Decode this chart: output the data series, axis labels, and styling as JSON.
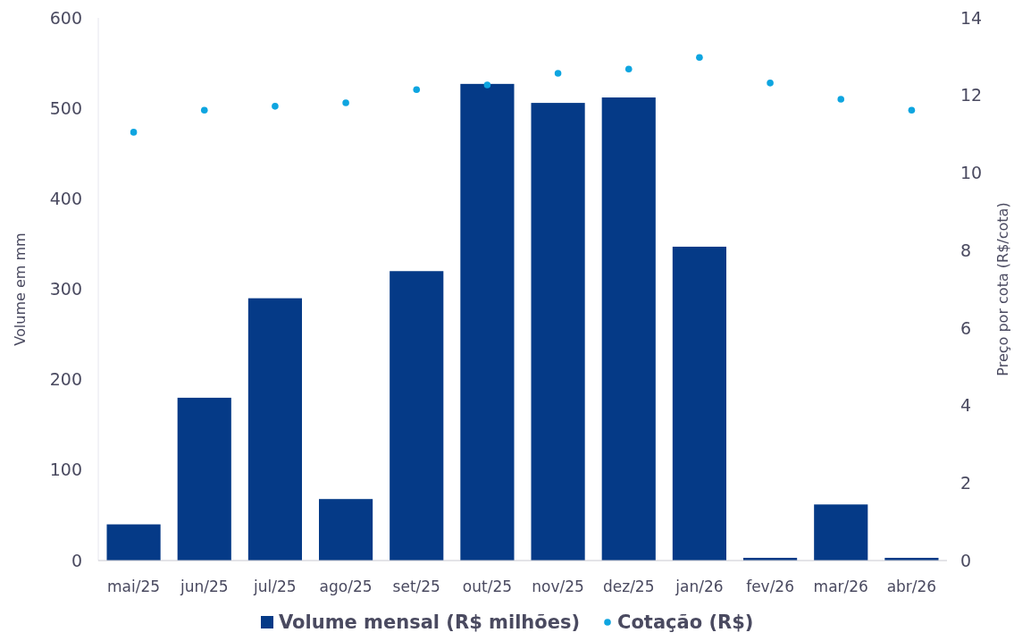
{
  "chart_data": {
    "type": "bar",
    "ylabel": "Volume em mm",
    "y2label": "Preço por cota (R$/cota)",
    "categories": [
      "mai/25",
      "jun/25",
      "jul/25",
      "ago/25",
      "set/25",
      "out/25",
      "nov/25",
      "dez/25",
      "jan/26",
      "fev/26",
      "mar/26",
      "abr/26"
    ],
    "series": [
      {
        "name": "Volume mensal (R$ milhões)",
        "color": "#053a87",
        "values": [
          40,
          180,
          290,
          68,
          320,
          527,
          506,
          512,
          347,
          3,
          62,
          3
        ]
      },
      {
        "name": "Cotação (R$)",
        "type": "scatter",
        "axis": "y2",
        "color": "#0ea5e0",
        "values": [
          11.05,
          11.62,
          11.72,
          11.81,
          12.15,
          12.27,
          12.57,
          12.68,
          12.98,
          12.32,
          11.9,
          11.62
        ]
      }
    ],
    "ylim": [
      0,
      600
    ],
    "yticks": [
      0,
      100,
      200,
      300,
      400,
      500,
      600
    ],
    "y2lim": [
      0,
      14
    ],
    "y2ticks": [
      0,
      2,
      4,
      6,
      8,
      10,
      12,
      14
    ],
    "grid": false,
    "legend": "bottom",
    "marker": "circle"
  }
}
